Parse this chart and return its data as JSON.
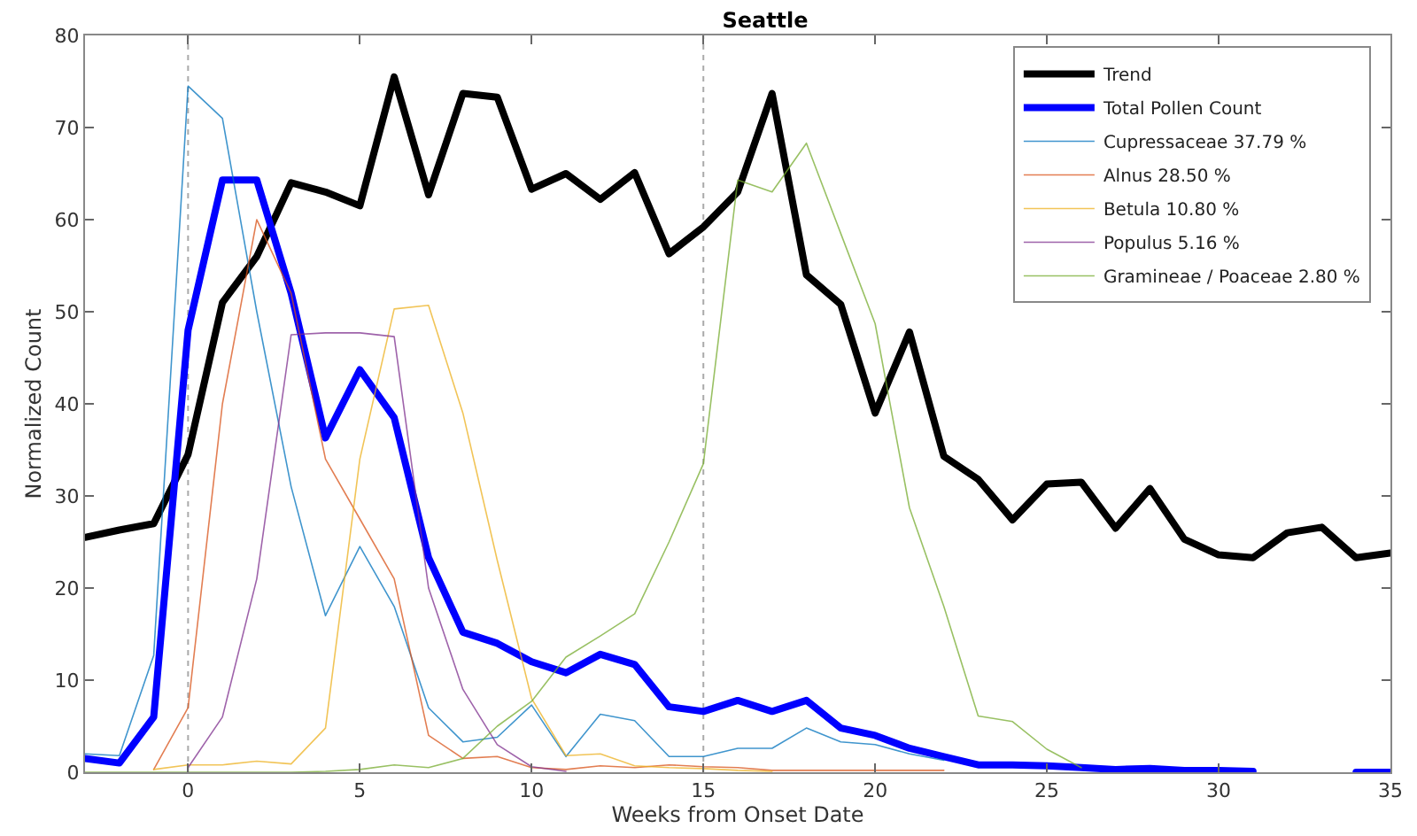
{
  "chart_data": {
    "type": "line",
    "title": "Seattle",
    "xlabel": "Weeks from Onset Date",
    "ylabel": "Normalized Count",
    "x": [
      -3,
      -2,
      -1,
      0,
      1,
      2,
      3,
      4,
      5,
      6,
      7,
      8,
      9,
      10,
      11,
      12,
      13,
      14,
      15,
      16,
      17,
      18,
      19,
      20,
      21,
      22,
      23,
      24,
      25,
      26,
      27,
      28,
      29,
      30,
      31,
      32,
      33,
      34,
      35
    ],
    "xlim": [
      -3,
      35
    ],
    "xticks": [
      0,
      5,
      10,
      15,
      20,
      25,
      30,
      35
    ],
    "ylim": [
      0,
      80
    ],
    "yticks": [
      0,
      10,
      20,
      30,
      40,
      50,
      60,
      70,
      80
    ],
    "grid": false,
    "legend": "top right",
    "marker": "none",
    "line_style": "solid",
    "ref_lines": [
      {
        "axis": "x",
        "value": 0,
        "color": "#aaaaaa",
        "line_style": "dotted"
      },
      {
        "axis": "x",
        "value": 15,
        "color": "#aaaaaa",
        "line_style": "dotted"
      }
    ],
    "series": [
      {
        "name": "Trend",
        "color": "#000000",
        "values": [
          25.5,
          26.3,
          27,
          34.5,
          51,
          56,
          64,
          63,
          61.5,
          75.5,
          62.7,
          73.7,
          73.3,
          63.3,
          65,
          62.2,
          65.1,
          56.3,
          59.2,
          63,
          73.7,
          54,
          50.8,
          39,
          47.8,
          34.3,
          31.8,
          27.4,
          31.3,
          31.5,
          26.5,
          30.8,
          25.3,
          23.6,
          23.3,
          26,
          26.6,
          23.3,
          23.8
        ]
      },
      {
        "name": "Total Pollen Count",
        "color": "#0000ff",
        "values": [
          1.5,
          1,
          6,
          48,
          64.3,
          64.3,
          52,
          36.3,
          43.7,
          38.5,
          23.3,
          15.2,
          14,
          12,
          10.8,
          12.8,
          11.7,
          7.1,
          6.6,
          7.8,
          6.6,
          7.8,
          4.8,
          4,
          2.6,
          1.7,
          0.8,
          0.8,
          0.7,
          0.5,
          0.3,
          0.4,
          0.2,
          0.2,
          0.1,
          null,
          null,
          0,
          0
        ]
      },
      {
        "name": "Cupressaceae 37.79 %",
        "color": "#0072bd",
        "values": [
          2,
          1.8,
          12.7,
          74.5,
          71,
          50,
          31,
          17,
          24.5,
          18,
          7,
          3.3,
          3.8,
          7.3,
          1.7,
          6.3,
          5.6,
          1.7,
          1.7,
          2.6,
          2.6,
          4.8,
          3.3,
          3,
          2,
          1.3,
          null,
          null,
          null,
          null,
          null,
          null,
          null,
          null,
          null,
          null,
          null,
          null,
          null
        ]
      },
      {
        "name": "Alnus 28.50 %",
        "color": "#d95319",
        "values": [
          null,
          null,
          0.3,
          7,
          40,
          60,
          52,
          34,
          27.5,
          21,
          4,
          1.5,
          1.7,
          0.5,
          0.3,
          0.7,
          0.5,
          0.8,
          0.6,
          0.5,
          0.2,
          0.2,
          0.2,
          0.2,
          0.2,
          0.2,
          null,
          null,
          null,
          null,
          null,
          null,
          null,
          null,
          null,
          null,
          null,
          null,
          null
        ]
      },
      {
        "name": "Betula 10.80 %",
        "color": "#edb120",
        "values": [
          null,
          null,
          0.3,
          0.8,
          0.8,
          1.2,
          0.9,
          4.8,
          34,
          50.3,
          50.7,
          39,
          23,
          8,
          1.8,
          2,
          0.7,
          0.5,
          0.4,
          0.2,
          0.1,
          null,
          null,
          null,
          null,
          null,
          null,
          null,
          null,
          null,
          null,
          null,
          null,
          null,
          null,
          null,
          null,
          null,
          null
        ]
      },
      {
        "name": "Populus 5.16 %",
        "color": "#7e2f8e",
        "values": [
          null,
          null,
          null,
          0.5,
          6,
          21,
          47.5,
          47.7,
          47.7,
          47.3,
          20,
          9,
          3,
          0.6,
          0.1,
          null,
          null,
          null,
          null,
          null,
          null,
          null,
          null,
          null,
          null,
          null,
          null,
          null,
          null,
          null,
          null,
          null,
          null,
          null,
          null,
          null,
          null,
          null,
          null
        ]
      },
      {
        "name": "Gramineae / Poaceae 2.80 %",
        "color": "#77ac30",
        "values": [
          0,
          0,
          0,
          0,
          0,
          0,
          0,
          0.1,
          0.3,
          0.8,
          0.5,
          1.5,
          5,
          7.7,
          12.5,
          14.8,
          17.2,
          25,
          33.5,
          64.3,
          63,
          68.3,
          58.5,
          48.7,
          28.7,
          18,
          6.1,
          5.5,
          2.5,
          0.5,
          null,
          null,
          null,
          null,
          null,
          null,
          null,
          null,
          null
        ]
      }
    ]
  }
}
